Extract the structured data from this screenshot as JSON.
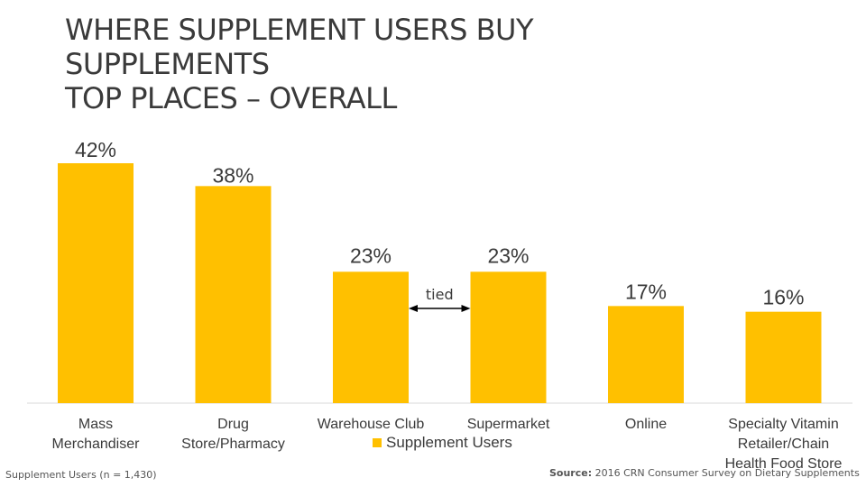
{
  "title": {
    "line1": "WHERE SUPPLEMENT USERS BUY",
    "line2": "SUPPLEMENTS",
    "line3": "TOP PLACES – OVERALL"
  },
  "chart_data": {
    "type": "bar",
    "categories": [
      [
        "Mass",
        "Merchandiser"
      ],
      [
        "Drug",
        "Store/Pharmacy"
      ],
      [
        "Warehouse Club"
      ],
      [
        "Supermarket"
      ],
      [
        "Online"
      ],
      [
        "Specialty Vitamin",
        "Retailer/Chain",
        "Health Food Store"
      ]
    ],
    "series": [
      {
        "name": "Supplement Users",
        "values": [
          42,
          38,
          23,
          23,
          17,
          16
        ],
        "labels": [
          "42%",
          "38%",
          "23%",
          "23%",
          "17%",
          "16%"
        ]
      }
    ],
    "annotation": {
      "text": "tied",
      "between": [
        2,
        3
      ]
    },
    "ylim": [
      0,
      45
    ],
    "grid": false,
    "legend_position": "bottom-center",
    "colors": {
      "bar": "#FFC000",
      "axis": "#d9d9d9",
      "arrow": "#000000"
    }
  },
  "footnote": "Supplement Users (n = 1,430)",
  "source": {
    "prefix": "Source:",
    "text": " 2016 CRN Consumer Survey on Dietary Supplements"
  }
}
